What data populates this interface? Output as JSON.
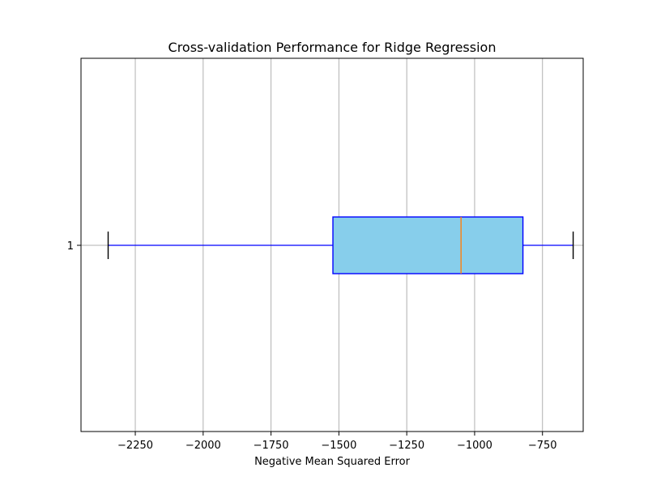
{
  "chart_data": {
    "type": "boxplot",
    "orientation": "horizontal",
    "title": "Cross-validation Performance for Ridge Regression",
    "xlabel": "Negative Mean Squared Error",
    "ylabel": "",
    "xlim": [
      -2450,
      -600
    ],
    "x_ticks": [
      -2250,
      -2000,
      -1750,
      -1500,
      -1250,
      -1000,
      -750
    ],
    "x_tick_labels": [
      "−2250",
      "−2000",
      "−1750",
      "−1500",
      "−1250",
      "−1000",
      "−750"
    ],
    "categories": [
      "1"
    ],
    "grid": true,
    "series": [
      {
        "whisker_low": -2350,
        "q1": -1522,
        "median": -1050,
        "q3": -822,
        "whisker_high": -637
      }
    ],
    "colors": {
      "box_fill": "#87ceeb",
      "box_edge": "#0000ff",
      "whisker": "#0000ff",
      "cap": "#000000",
      "median": "#ff7f0e",
      "grid": "#b0b0b0",
      "axes": "#000000"
    }
  }
}
